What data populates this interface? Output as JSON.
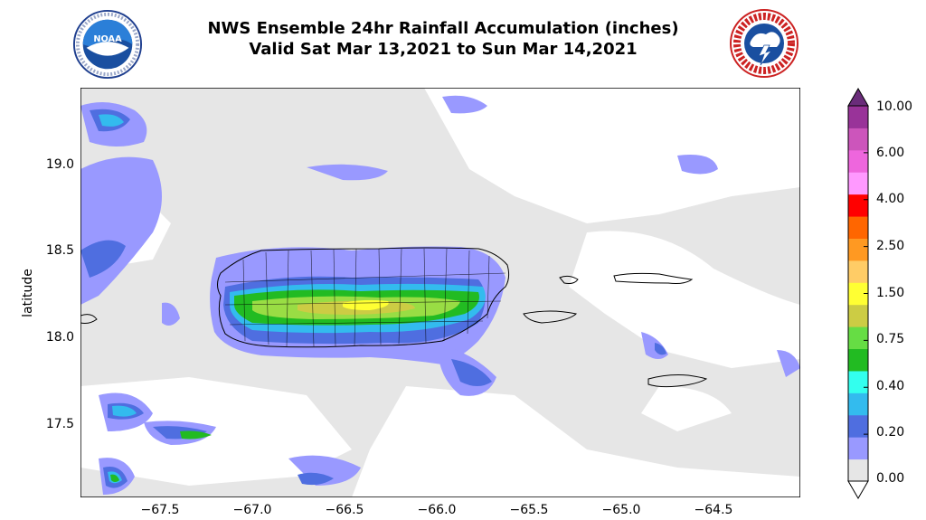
{
  "title": {
    "line1": "NWS Ensemble 24hr Rainfall Accumulation (inches)",
    "line2": "Valid Sat Mar 13,2021 to Sun Mar 14,2021"
  },
  "logos": {
    "left": {
      "icon": "noaa-logo-icon",
      "text": "NOAA"
    },
    "right": {
      "icon": "national-weather-service-logo-icon"
    }
  },
  "map": {
    "ylabel": "latitude",
    "xlabel": "",
    "x_ticks": [
      "−67.5",
      "−67.0",
      "−66.5",
      "−66.0",
      "−65.5",
      "−65.0",
      "−64.5"
    ],
    "y_ticks": [
      "19.0",
      "18.5",
      "18.0",
      "17.5"
    ],
    "xlim": [
      -67.95,
      -64.05
    ],
    "ylim": [
      17.08,
      19.43
    ],
    "background_color": "#e6e6e6",
    "region": "Puerto Rico and U.S. Virgin Islands"
  },
  "colorbar": {
    "labels": [
      "10.00",
      "6.00",
      "4.00",
      "2.50",
      "1.50",
      "0.75",
      "0.40",
      "0.20",
      "0.00"
    ],
    "extend": "both",
    "colors_bottom_to_top": [
      "#ffffff",
      "#e6e6e6",
      "#9999ff",
      "#4f6ee0",
      "#33bbee",
      "#33ffee",
      "#22bb22",
      "#66dd44",
      "#cccc44",
      "#ffff33",
      "#ffcc66",
      "#ff9922",
      "#ff6600",
      "#ff0000",
      "#ff99ff",
      "#ee66dd",
      "#cc55bb",
      "#993399",
      "#6a2c7a"
    ]
  }
}
